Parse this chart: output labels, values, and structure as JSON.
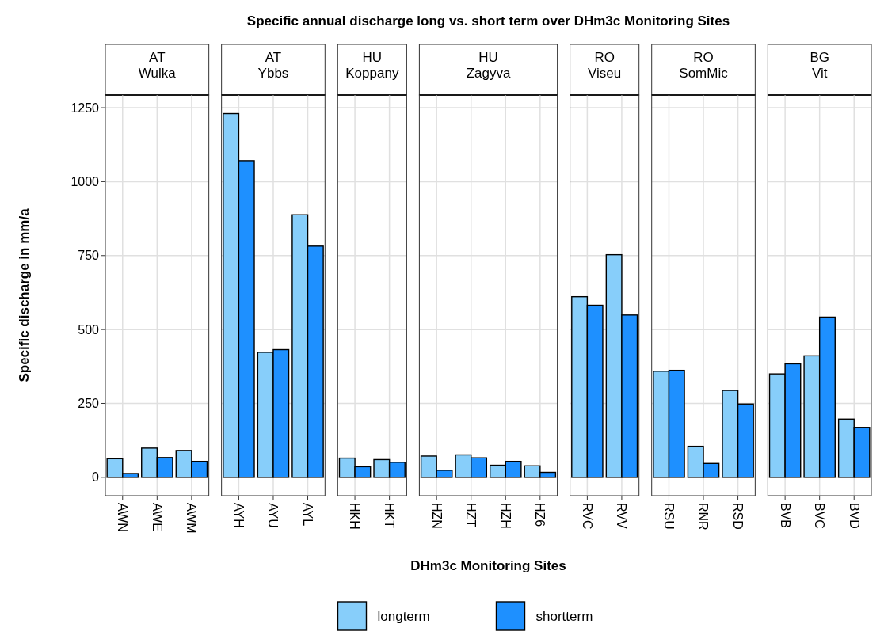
{
  "chart_data": [
    {
      "type": "bar",
      "subtitle": "AT\nWulka",
      "ylabel": "Specific discharge in mm/a",
      "categories": [
        "AWN",
        "AWE",
        "AWM"
      ],
      "ylim": [
        -62,
        1293
      ],
      "yticks": [
        0,
        250,
        500,
        750,
        1000,
        1250
      ],
      "grid": true,
      "legend": "bottom",
      "series": [
        {
          "name": "longterm",
          "color": "#87cefa",
          "values": [
            63,
            99,
            91
          ]
        },
        {
          "name": "shortterm",
          "color": "#1e90ff",
          "values": [
            13,
            67,
            54
          ]
        }
      ]
    },
    {
      "type": "bar",
      "subtitle": "AT\nYbbs",
      "categories": [
        "AYH",
        "AYU",
        "AYL"
      ],
      "ylim": [
        -62,
        1293
      ],
      "yticks": [
        0,
        250,
        500,
        750,
        1000,
        1250
      ],
      "grid": true,
      "tick_labels": "x",
      "series": [
        {
          "color": "#87cefa",
          "values": [
            1230,
            423,
            888
          ]
        },
        {
          "color": "#1e90ff",
          "values": [
            1071,
            432,
            782
          ]
        }
      ]
    },
    {
      "type": "bar",
      "subtitle": "HU\nKoppany",
      "categories": [
        "HKH",
        "HKT"
      ],
      "ylim": [
        -62,
        1293
      ],
      "yticks": [
        0,
        250,
        500,
        750,
        1000,
        1250
      ],
      "grid": true,
      "tick_labels": "x",
      "series": [
        {
          "color": "#87cefa",
          "values": [
            65,
            60
          ]
        },
        {
          "color": "#1e90ff",
          "values": [
            36,
            51
          ]
        }
      ]
    },
    {
      "type": "bar",
      "title": "Specific annual discharge long vs. short term over DHm3c Monitoring Sites",
      "xlabel": "DHm3c Monitoring Sites",
      "subtitle": "HU\nZagyva",
      "categories": [
        "HZN",
        "HZT",
        "HZH",
        "HZ6"
      ],
      "ylim": [
        -62,
        1293
      ],
      "yticks": [
        0,
        250,
        500,
        750,
        1000,
        1250
      ],
      "grid": true,
      "tick_labels": "x",
      "series": [
        {
          "color": "#87cefa",
          "values": [
            72,
            76,
            41,
            39
          ]
        },
        {
          "color": "#1e90ff",
          "values": [
            24,
            66,
            54,
            17
          ]
        }
      ]
    },
    {
      "type": "bar",
      "subtitle": "RO\nViseu",
      "categories": [
        "RVC",
        "RVV"
      ],
      "ylim": [
        -62,
        1293
      ],
      "yticks": [
        0,
        250,
        500,
        750,
        1000,
        1250
      ],
      "grid": true,
      "tick_labels": "x",
      "series": [
        {
          "color": "#87cefa",
          "values": [
            611,
            753
          ]
        },
        {
          "color": "#1e90ff",
          "values": [
            582,
            549
          ]
        }
      ]
    },
    {
      "type": "bar",
      "subtitle": "RO\nSomMic",
      "categories": [
        "RSU",
        "RNR",
        "RSD"
      ],
      "ylim": [
        -62,
        1293
      ],
      "yticks": [
        0,
        250,
        500,
        750,
        1000,
        1250
      ],
      "grid": true,
      "tick_labels": "x",
      "series": [
        {
          "color": "#87cefa",
          "values": [
            359,
            105,
            294
          ]
        },
        {
          "color": "#1e90ff",
          "values": [
            362,
            47,
            248
          ]
        }
      ]
    },
    {
      "type": "bar",
      "subtitle": "BG\nVit",
      "categories": [
        "BVB",
        "BVC",
        "BVD"
      ],
      "ylim": [
        -62,
        1293
      ],
      "yticks": [
        0,
        250,
        500,
        750,
        1000,
        1250
      ],
      "grid": true,
      "tick_labels": "x",
      "series": [
        {
          "color": "#87cefa",
          "values": [
            350,
            411,
            197
          ]
        },
        {
          "color": "#1e90ff",
          "values": [
            384,
            542,
            169
          ]
        }
      ]
    }
  ]
}
